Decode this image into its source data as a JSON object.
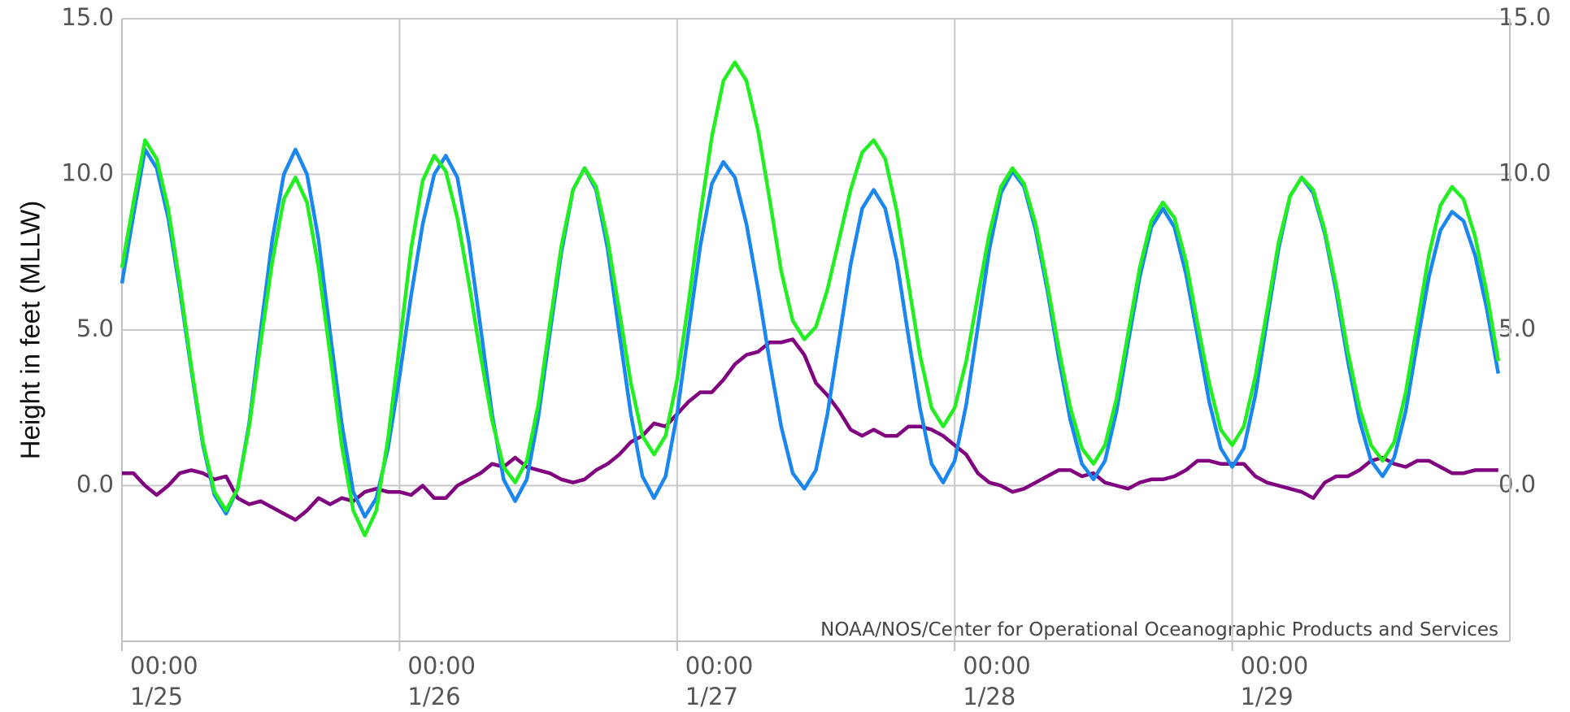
{
  "chart_data": {
    "type": "line",
    "ylabel": "Height in feet (MLLW)",
    "annotation": "NOAA/NOS/Center for Operational Oceanographic Products and Services",
    "ylim": [
      -5,
      15
    ],
    "yticks": [
      {
        "value": 0,
        "label": "0.0"
      },
      {
        "value": 5,
        "label": "5.0"
      },
      {
        "value": 10,
        "label": "10.0"
      },
      {
        "value": 15,
        "label": "15.0"
      }
    ],
    "y2lim": [
      -5,
      15
    ],
    "y2ticks": [
      {
        "value": 0,
        "label": "0.0"
      },
      {
        "value": 5,
        "label": "5.0"
      },
      {
        "value": 10,
        "label": "10.0"
      },
      {
        "value": 15,
        "label": "15.0"
      }
    ],
    "xlim": [
      "1/25 00:00",
      "1/30 00:00"
    ],
    "xticks": [
      {
        "value": "1/25 00:00",
        "label": [
          "00:00",
          "1/25"
        ]
      },
      {
        "value": "1/26 00:00",
        "label": [
          "00:00",
          "1/26"
        ]
      },
      {
        "value": "1/27 00:00",
        "label": [
          "00:00",
          "1/27"
        ]
      },
      {
        "value": "1/28 00:00",
        "label": [
          "00:00",
          "1/28"
        ]
      },
      {
        "value": "1/29 00:00",
        "label": [
          "00:00",
          "1/29"
        ]
      }
    ],
    "grid": true,
    "x": [
      "1/25 00:00",
      "1/25 01:00",
      "1/25 02:00",
      "1/25 03:00",
      "1/25 04:00",
      "1/25 05:00",
      "1/25 06:00",
      "1/25 07:00",
      "1/25 08:00",
      "1/25 09:00",
      "1/25 10:00",
      "1/25 11:00",
      "1/25 12:00",
      "1/25 13:00",
      "1/25 14:00",
      "1/25 15:00",
      "1/25 16:00",
      "1/25 17:00",
      "1/25 18:00",
      "1/25 19:00",
      "1/25 20:00",
      "1/25 21:00",
      "1/25 22:00",
      "1/25 23:00",
      "1/26 00:00",
      "1/26 01:00",
      "1/26 02:00",
      "1/26 03:00",
      "1/26 04:00",
      "1/26 05:00",
      "1/26 06:00",
      "1/26 07:00",
      "1/26 08:00",
      "1/26 09:00",
      "1/26 10:00",
      "1/26 11:00",
      "1/26 12:00",
      "1/26 13:00",
      "1/26 14:00",
      "1/26 15:00",
      "1/26 16:00",
      "1/26 17:00",
      "1/26 18:00",
      "1/26 19:00",
      "1/26 20:00",
      "1/26 21:00",
      "1/26 22:00",
      "1/26 23:00",
      "1/27 00:00",
      "1/27 01:00",
      "1/27 02:00",
      "1/27 03:00",
      "1/27 04:00",
      "1/27 05:00",
      "1/27 06:00",
      "1/27 07:00",
      "1/27 08:00",
      "1/27 09:00",
      "1/27 10:00",
      "1/27 11:00",
      "1/27 12:00",
      "1/27 13:00",
      "1/27 14:00",
      "1/27 15:00",
      "1/27 16:00",
      "1/27 17:00",
      "1/27 18:00",
      "1/27 19:00",
      "1/27 20:00",
      "1/27 21:00",
      "1/27 22:00",
      "1/27 23:00",
      "1/28 00:00",
      "1/28 01:00",
      "1/28 02:00",
      "1/28 03:00",
      "1/28 04:00",
      "1/28 05:00",
      "1/28 06:00",
      "1/28 07:00",
      "1/28 08:00",
      "1/28 09:00",
      "1/28 10:00",
      "1/28 11:00",
      "1/28 12:00",
      "1/28 13:00",
      "1/28 14:00",
      "1/28 15:00",
      "1/28 16:00",
      "1/28 17:00",
      "1/28 18:00",
      "1/28 19:00",
      "1/28 20:00",
      "1/28 21:00",
      "1/28 22:00",
      "1/28 23:00",
      "1/29 00:00",
      "1/29 01:00",
      "1/29 02:00",
      "1/29 03:00",
      "1/29 04:00",
      "1/29 05:00",
      "1/29 06:00",
      "1/29 07:00",
      "1/29 08:00",
      "1/29 09:00",
      "1/29 10:00",
      "1/29 11:00",
      "1/29 12:00",
      "1/29 13:00",
      "1/29 14:00",
      "1/29 15:00",
      "1/29 16:00",
      "1/29 17:00",
      "1/29 18:00",
      "1/29 19:00",
      "1/29 20:00",
      "1/29 21:00",
      "1/29 22:00",
      "1/29 23:00"
    ],
    "series": [
      {
        "color": "#1a87f0",
        "values": [
          6.5,
          8.7,
          10.8,
          10.2,
          8.6,
          6.3,
          3.7,
          1.3,
          -0.3,
          -0.9,
          -0.1,
          2.0,
          5.0,
          7.9,
          10.0,
          10.8,
          10.0,
          7.9,
          4.9,
          2.0,
          -0.2,
          -1.0,
          -0.4,
          1.2,
          3.5,
          6.1,
          8.4,
          10.0,
          10.6,
          9.9,
          7.8,
          5.1,
          2.3,
          0.2,
          -0.5,
          0.2,
          2.2,
          4.9,
          7.5,
          9.5,
          10.2,
          9.5,
          7.6,
          4.9,
          2.3,
          0.3,
          -0.4,
          0.3,
          2.3,
          5.0,
          7.7,
          9.7,
          10.4,
          9.9,
          8.4,
          6.3,
          4.0,
          1.9,
          0.4,
          -0.1,
          0.5,
          2.3,
          4.7,
          7.1,
          8.9,
          9.5,
          8.9,
          7.2,
          4.8,
          2.5,
          0.7,
          0.1,
          0.8,
          2.6,
          5.1,
          7.6,
          9.4,
          10.1,
          9.6,
          8.2,
          6.3,
          4.1,
          2.1,
          0.7,
          0.2,
          0.8,
          2.4,
          4.6,
          6.7,
          8.3,
          8.9,
          8.3,
          6.8,
          4.8,
          2.7,
          1.2,
          0.6,
          1.2,
          2.9,
          5.3,
          7.6,
          9.3,
          9.9,
          9.4,
          8.1,
          6.2,
          4.0,
          2.1,
          0.8,
          0.3,
          0.9,
          2.4,
          4.6,
          6.7,
          8.2,
          8.8,
          8.5,
          7.4,
          5.7,
          3.6
        ]
      },
      {
        "color": "#22ee22",
        "values": [
          7.0,
          9.1,
          11.1,
          10.5,
          8.9,
          6.5,
          3.8,
          1.4,
          -0.2,
          -0.8,
          -0.1,
          1.9,
          4.6,
          7.2,
          9.2,
          9.9,
          9.1,
          7.0,
          4.2,
          1.3,
          -0.8,
          -1.6,
          -0.8,
          1.5,
          4.5,
          7.6,
          9.8,
          10.6,
          10.1,
          8.6,
          6.5,
          4.2,
          2.1,
          0.6,
          0.1,
          0.8,
          2.6,
          5.2,
          7.7,
          9.5,
          10.2,
          9.6,
          7.9,
          5.6,
          3.3,
          1.6,
          1.0,
          1.6,
          3.4,
          5.9,
          8.7,
          11.2,
          13.0,
          13.6,
          13.0,
          11.4,
          9.2,
          6.9,
          5.3,
          4.7,
          5.1,
          6.3,
          7.9,
          9.5,
          10.7,
          11.1,
          10.5,
          8.8,
          6.5,
          4.2,
          2.5,
          1.9,
          2.5,
          4.0,
          6.1,
          8.1,
          9.6,
          10.2,
          9.7,
          8.4,
          6.5,
          4.4,
          2.5,
          1.2,
          0.7,
          1.3,
          2.8,
          4.9,
          7.0,
          8.5,
          9.1,
          8.6,
          7.2,
          5.2,
          3.3,
          1.8,
          1.3,
          1.9,
          3.5,
          5.6,
          7.8,
          9.3,
          9.9,
          9.5,
          8.2,
          6.4,
          4.3,
          2.5,
          1.3,
          0.8,
          1.4,
          3.0,
          5.2,
          7.4,
          9.0,
          9.6,
          9.2,
          8.0,
          6.2,
          4.0
        ]
      },
      {
        "color": "#800080",
        "values": [
          0.4,
          0.4,
          0.0,
          -0.3,
          0.0,
          0.4,
          0.5,
          0.4,
          0.2,
          0.3,
          -0.4,
          -0.6,
          -0.5,
          -0.7,
          -0.9,
          -1.1,
          -0.8,
          -0.4,
          -0.6,
          -0.4,
          -0.5,
          -0.2,
          -0.1,
          -0.2,
          -0.2,
          -0.3,
          0.0,
          -0.4,
          -0.4,
          0.0,
          0.2,
          0.4,
          0.7,
          0.6,
          0.9,
          0.6,
          0.5,
          0.4,
          0.2,
          0.1,
          0.2,
          0.5,
          0.7,
          1.0,
          1.4,
          1.6,
          2.0,
          1.9,
          2.3,
          2.7,
          3.0,
          3.0,
          3.4,
          3.9,
          4.2,
          4.3,
          4.6,
          4.6,
          4.7,
          4.2,
          3.3,
          2.9,
          2.4,
          1.8,
          1.6,
          1.8,
          1.6,
          1.6,
          1.9,
          1.9,
          1.8,
          1.6,
          1.3,
          1.0,
          0.4,
          0.1,
          0.0,
          -0.2,
          -0.1,
          0.1,
          0.3,
          0.5,
          0.5,
          0.3,
          0.4,
          0.1,
          0.0,
          -0.1,
          0.1,
          0.2,
          0.2,
          0.3,
          0.5,
          0.8,
          0.8,
          0.7,
          0.7,
          0.7,
          0.3,
          0.1,
          0.0,
          -0.1,
          -0.2,
          -0.4,
          0.1,
          0.3,
          0.3,
          0.5,
          0.8,
          0.9,
          0.7,
          0.6,
          0.8,
          0.8,
          0.6,
          0.4,
          0.4,
          0.5,
          0.5,
          0.5
        ]
      }
    ]
  }
}
